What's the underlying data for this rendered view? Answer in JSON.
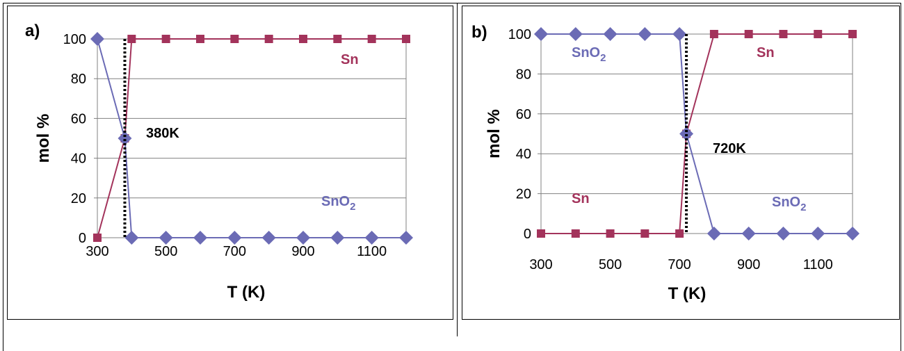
{
  "chart_data": [
    {
      "panel_label": "a)",
      "type": "line",
      "xlabel": "T (K)",
      "ylabel": "mol %",
      "xlim": [
        300,
        1200
      ],
      "ylim": [
        0,
        100
      ],
      "xticks": [
        300,
        500,
        700,
        900,
        1100
      ],
      "yticks": [
        0,
        20,
        40,
        60,
        80,
        100
      ],
      "grid": "horizontal",
      "series": [
        {
          "name": "Sn",
          "color": "#a3335b",
          "marker": "square",
          "x": [
            300,
            380,
            400,
            500,
            600,
            700,
            800,
            900,
            1000,
            1100,
            1200
          ],
          "y": [
            0,
            50,
            100,
            100,
            100,
            100,
            100,
            100,
            100,
            100,
            100
          ]
        },
        {
          "name": "SnO2",
          "color": "#6b6bb5",
          "marker": "diamond",
          "x": [
            300,
            380,
            400,
            500,
            600,
            700,
            800,
            900,
            1000,
            1100,
            1200
          ],
          "y": [
            100,
            50,
            0,
            0,
            0,
            0,
            0,
            0,
            0,
            0,
            0
          ]
        }
      ],
      "vline": {
        "x": 380,
        "style": "dotted"
      },
      "annotations": [
        {
          "text": "380K",
          "color": "#000000"
        },
        {
          "text": "Sn",
          "color": "#a3335b"
        },
        {
          "text": "SnO",
          "sub": "2",
          "color": "#6b6bb5"
        }
      ]
    },
    {
      "panel_label": "b)",
      "type": "line",
      "xlabel": "T (K)",
      "ylabel": "mol %",
      "xlim": [
        300,
        1200
      ],
      "ylim": [
        0,
        100
      ],
      "xticks": [
        300,
        500,
        700,
        900,
        1100
      ],
      "yticks": [
        0,
        20,
        40,
        60,
        80,
        100
      ],
      "grid": "horizontal",
      "series": [
        {
          "name": "Sn",
          "color": "#a3335b",
          "marker": "square",
          "x": [
            300,
            400,
            500,
            600,
            700,
            720,
            800,
            900,
            1000,
            1100,
            1200
          ],
          "y": [
            0,
            0,
            0,
            0,
            0,
            50,
            100,
            100,
            100,
            100,
            100
          ]
        },
        {
          "name": "SnO2",
          "color": "#6b6bb5",
          "marker": "diamond",
          "x": [
            300,
            400,
            500,
            600,
            700,
            720,
            800,
            900,
            1000,
            1100,
            1200
          ],
          "y": [
            100,
            100,
            100,
            100,
            100,
            50,
            0,
            0,
            0,
            0,
            0
          ]
        }
      ],
      "vline": {
        "x": 720,
        "style": "dotted"
      },
      "annotations": [
        {
          "text": "720K",
          "color": "#000000"
        },
        {
          "text": "SnO",
          "sub": "2",
          "color": "#6b6bb5"
        },
        {
          "text": "Sn",
          "color": "#a3335b"
        },
        {
          "text": "Sn",
          "color": "#a3335b"
        },
        {
          "text": "SnO",
          "sub": "2",
          "color": "#6b6bb5"
        }
      ]
    }
  ]
}
